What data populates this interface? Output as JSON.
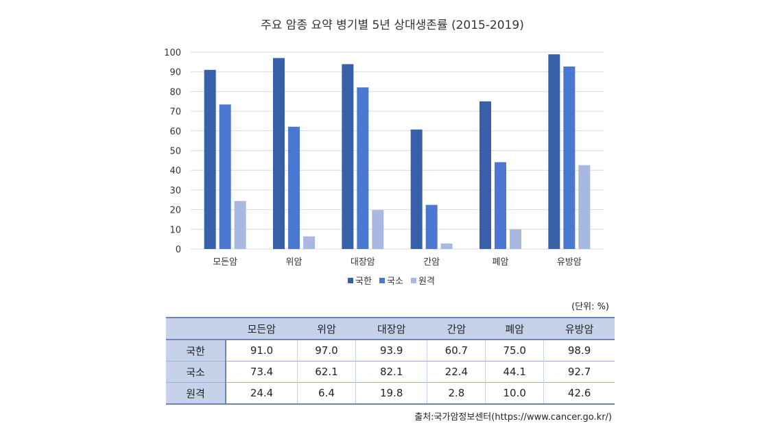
{
  "chart_data": {
    "type": "bar",
    "title": "주요 암종 요약 병기별 5년 상대생존률 (2015-2019)",
    "categories": [
      "모든암",
      "위암",
      "대장암",
      "간암",
      "폐암",
      "유방암"
    ],
    "series": [
      {
        "name": "국한",
        "values": [
          91.0,
          97.0,
          93.9,
          60.7,
          75.0,
          98.9
        ],
        "color": "#3760a8"
      },
      {
        "name": "국소",
        "values": [
          73.4,
          62.1,
          82.1,
          22.4,
          44.1,
          92.7
        ],
        "color": "#4a78d0"
      },
      {
        "name": "원격",
        "values": [
          24.4,
          6.4,
          19.8,
          2.8,
          10.0,
          42.6
        ],
        "color": "#a8b8e0"
      }
    ],
    "ylim": [
      0,
      100
    ],
    "yticks": [
      0,
      10,
      20,
      30,
      40,
      50,
      60,
      70,
      80,
      90,
      100
    ],
    "grid": true,
    "legend": "bottom",
    "xlabel": "",
    "ylabel": ""
  },
  "table": {
    "unit": "(단위: %)",
    "header_corner": "",
    "columns": [
      "모든암",
      "위암",
      "대장암",
      "간암",
      "폐암",
      "유방암"
    ],
    "rows": [
      {
        "label": "국한",
        "values": [
          "91.0",
          "97.0",
          "93.9",
          "60.7",
          "75.0",
          "98.9"
        ]
      },
      {
        "label": "국소",
        "values": [
          "73.4",
          "62.1",
          "82.1",
          "22.4",
          "44.1",
          "92.7"
        ]
      },
      {
        "label": "원격",
        "values": [
          "24.4",
          "6.4",
          "19.8",
          "2.8",
          "10.0",
          "42.6"
        ]
      }
    ],
    "source": "출처:국가암정보센터(https://www.cancer.go.kr/)"
  }
}
